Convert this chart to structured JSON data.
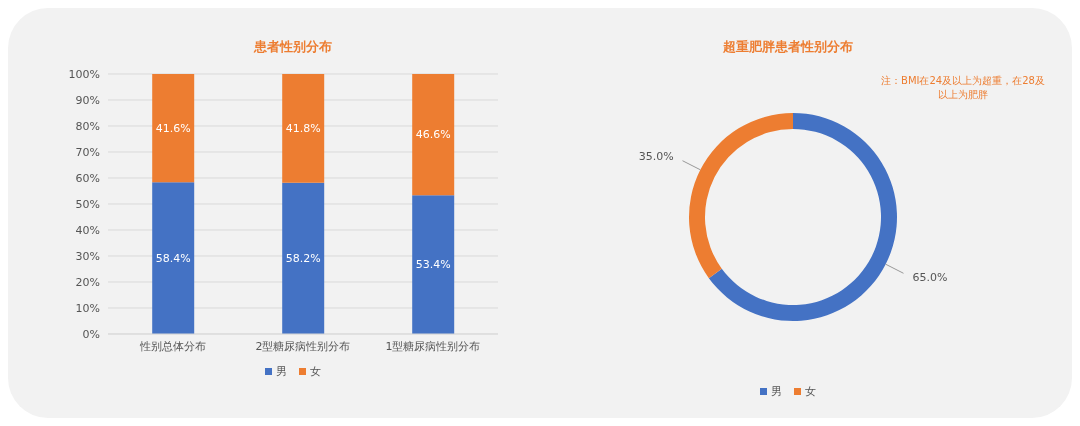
{
  "chart_data": [
    {
      "type": "bar",
      "title": "患者性别分布",
      "categories": [
        "性别总体分布",
        "2型糖尿病性别分布",
        "1型糖尿病性别分布"
      ],
      "stacked": true,
      "series": [
        {
          "name": "男",
          "color": "#4472c4",
          "values": [
            58.4,
            58.2,
            53.4
          ],
          "value_labels": [
            "58.4%",
            "58.2%",
            "53.4%"
          ]
        },
        {
          "name": "女",
          "color": "#ed7d31",
          "values": [
            41.6,
            41.8,
            46.6
          ],
          "value_labels": [
            "41.6%",
            "41.8%",
            "46.6%"
          ]
        }
      ],
      "ylim": [
        0,
        100
      ],
      "yticks": [
        {
          "value": 0,
          "label": "0%"
        },
        {
          "value": 10,
          "label": "10%"
        },
        {
          "value": 20,
          "label": "20%"
        },
        {
          "value": 30,
          "label": "30%"
        },
        {
          "value": 40,
          "label": "40%"
        },
        {
          "value": 50,
          "label": "50%"
        },
        {
          "value": 60,
          "label": "60%"
        },
        {
          "value": 70,
          "label": "70%"
        },
        {
          "value": 80,
          "label": "80%"
        },
        {
          "value": 90,
          "label": "90%"
        },
        {
          "value": 100,
          "label": "100%"
        }
      ],
      "grid": "y",
      "legend": "bottom"
    },
    {
      "type": "donut",
      "title": "超重肥胖患者性别分布",
      "categories": [
        "男",
        "女"
      ],
      "values": [
        65.0,
        35.0
      ],
      "value_labels": [
        "65.0%",
        "35.0%"
      ],
      "colors": [
        "#4472c4",
        "#ed7d31"
      ],
      "legend": "bottom",
      "annotations": [
        "注：BMI在24及以上为超重，在28及以上为肥胖"
      ]
    }
  ]
}
